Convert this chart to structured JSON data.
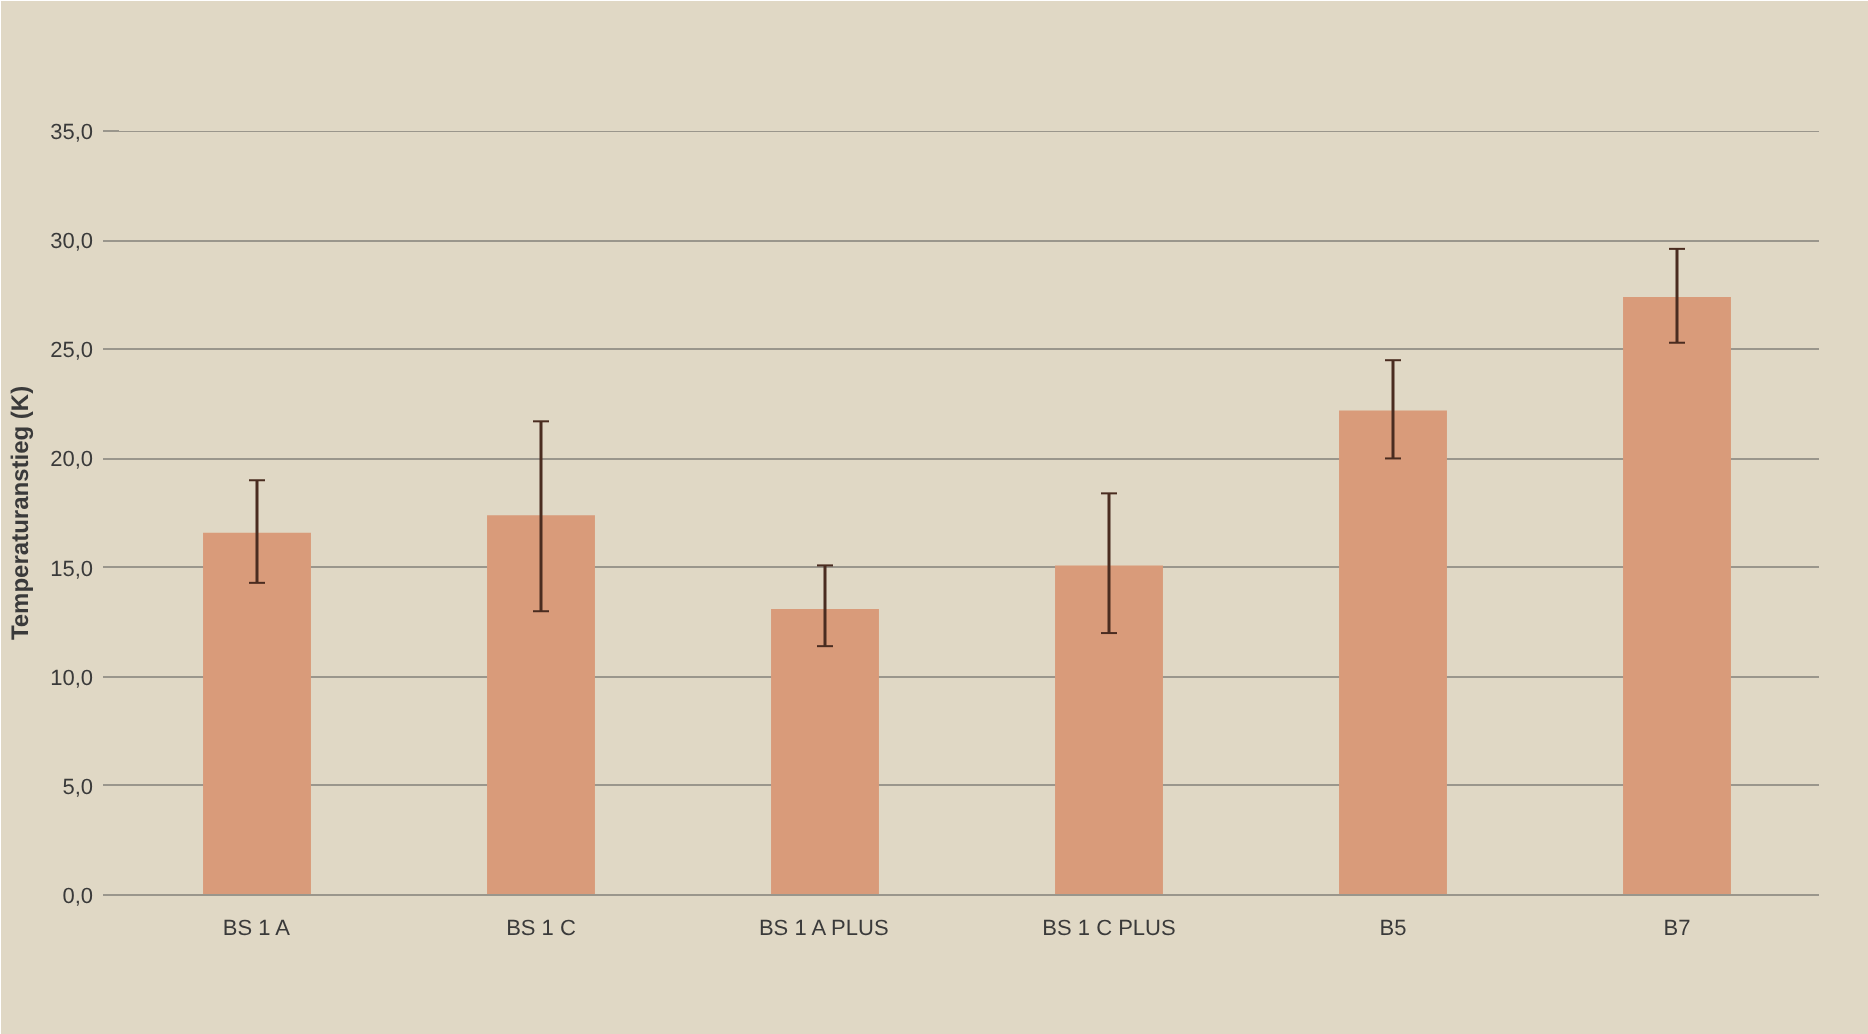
{
  "chart_data": {
    "type": "bar",
    "ylabel": "Temperaturanstieg (K)",
    "categories": [
      "BS 1 A",
      "BS 1 C",
      "BS 1 A PLUS",
      "BS 1 C PLUS",
      "B5",
      "B7"
    ],
    "values": [
      16.6,
      17.4,
      13.1,
      15.1,
      22.2,
      27.4
    ],
    "errors": [
      [
        14.3,
        19.0
      ],
      [
        13.0,
        21.7
      ],
      [
        11.4,
        15.1
      ],
      [
        12.0,
        18.4
      ],
      [
        20.0,
        24.5
      ],
      [
        25.3,
        29.6
      ]
    ],
    "color": "#d99b7a",
    "ylim": [
      0,
      35
    ],
    "yticks": [
      {
        "value": 0,
        "label": "0,0"
      },
      {
        "value": 5,
        "label": "5,0"
      },
      {
        "value": 10,
        "label": "10,0"
      },
      {
        "value": 15,
        "label": "15,0"
      },
      {
        "value": 20,
        "label": "20,0"
      },
      {
        "value": 25,
        "label": "25,0"
      },
      {
        "value": 30,
        "label": "30,0"
      },
      {
        "value": 35,
        "label": "35,0"
      }
    ],
    "grid": "y"
  }
}
